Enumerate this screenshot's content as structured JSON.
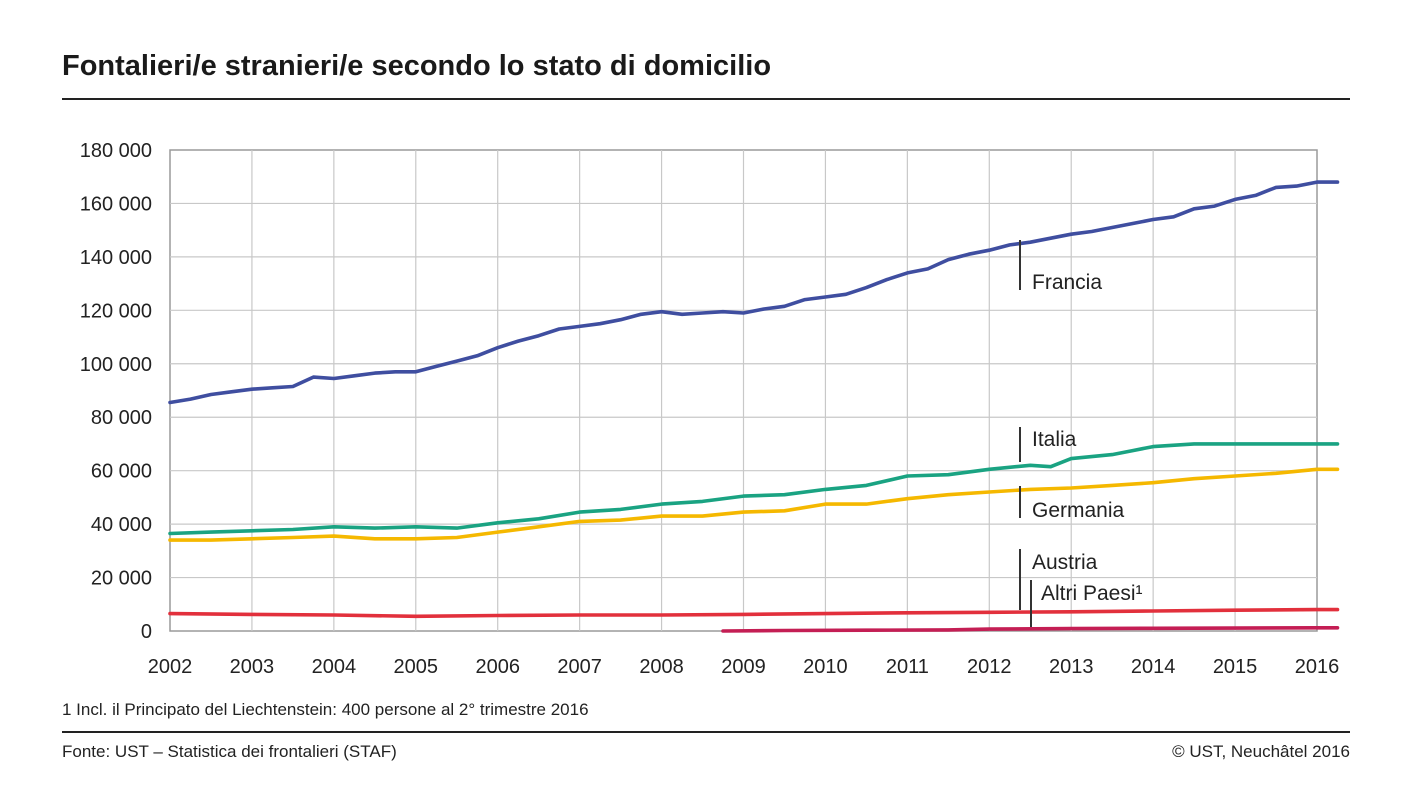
{
  "header": {
    "title": "Fontalieri/e stranieri/e secondo lo stato di domicilio"
  },
  "footer": {
    "footnote": "1   Incl. il Principato del Liechtenstein: 400 persone al 2° trimestre 2016",
    "source": "Fonte: UST – Statistica dei frontalieri (STAF)",
    "copyright": "© UST, Neuchâtel 2016"
  },
  "chart_data": {
    "type": "line",
    "title": "Fontalieri/e stranieri/e secondo lo stato di domicilio",
    "xlabel": "",
    "ylabel": "",
    "xlim": [
      2002,
      2016
    ],
    "ylim": [
      0,
      180000
    ],
    "y_ticks": [
      0,
      20000,
      40000,
      60000,
      80000,
      100000,
      120000,
      140000,
      160000,
      180000
    ],
    "y_tick_labels": [
      "0",
      "20 000",
      "40 000",
      "60 000",
      "80 000",
      "100 000",
      "120 000",
      "140 000",
      "160 000",
      "180 000"
    ],
    "x_tick_labels": [
      "2002",
      "2003",
      "2004",
      "2005",
      "2006",
      "2007",
      "2008",
      "2009",
      "2010",
      "2011",
      "2012",
      "2013",
      "2014",
      "2015",
      "2016"
    ],
    "grid": true,
    "series": [
      {
        "name": "Francia",
        "color": "#3f4ea0",
        "x": [
          2002.0,
          2002.25,
          2002.5,
          2002.75,
          2003.0,
          2003.25,
          2003.5,
          2003.75,
          2004.0,
          2004.25,
          2004.5,
          2004.75,
          2005.0,
          2005.25,
          2005.5,
          2005.75,
          2006.0,
          2006.25,
          2006.5,
          2006.75,
          2007.0,
          2007.25,
          2007.5,
          2007.75,
          2008.0,
          2008.25,
          2008.5,
          2008.75,
          2009.0,
          2009.25,
          2009.5,
          2009.75,
          2010.0,
          2010.25,
          2010.5,
          2010.75,
          2011.0,
          2011.25,
          2011.5,
          2011.75,
          2012.0,
          2012.25,
          2012.5,
          2012.75,
          2013.0,
          2013.25,
          2013.5,
          2013.75,
          2014.0,
          2014.25,
          2014.5,
          2014.75,
          2015.0,
          2015.25,
          2015.5,
          2015.75,
          2016.0,
          2016.25
        ],
        "values": [
          85500,
          86800,
          88500,
          89500,
          90500,
          91000,
          91500,
          95000,
          94500,
          95500,
          96500,
          97000,
          97000,
          99000,
          101000,
          103000,
          106000,
          108500,
          110500,
          113000,
          114000,
          115000,
          116500,
          118500,
          119500,
          118500,
          119000,
          119500,
          119000,
          120500,
          121500,
          124000,
          125000,
          126000,
          128500,
          131500,
          134000,
          135500,
          139000,
          141000,
          142500,
          144500,
          145500,
          147000,
          148500,
          149500,
          151000,
          152500,
          154000,
          155000,
          158000,
          159000,
          161500,
          163000,
          166000,
          166500,
          168000,
          168000
        ]
      },
      {
        "name": "Italia",
        "color": "#1aa382",
        "x": [
          2002.0,
          2002.5,
          2003.0,
          2003.5,
          2004.0,
          2004.5,
          2005.0,
          2005.5,
          2006.0,
          2006.5,
          2007.0,
          2007.5,
          2008.0,
          2008.5,
          2009.0,
          2009.5,
          2010.0,
          2010.5,
          2011.0,
          2011.5,
          2012.0,
          2012.5,
          2012.75,
          2013.0,
          2013.5,
          2013.75,
          2014.0,
          2014.5,
          2015.0,
          2015.5,
          2016.0,
          2016.25
        ],
        "values": [
          36500,
          37000,
          37500,
          38000,
          39000,
          38500,
          39000,
          38500,
          40500,
          42000,
          44500,
          45500,
          47500,
          48500,
          50500,
          51000,
          53000,
          54500,
          58000,
          58500,
          60500,
          62000,
          61500,
          64500,
          66000,
          67500,
          69000,
          70000,
          70000,
          70000,
          70000,
          70000
        ]
      },
      {
        "name": "Germania",
        "color": "#f5b800",
        "x": [
          2002.0,
          2002.5,
          2003.0,
          2003.5,
          2004.0,
          2004.5,
          2005.0,
          2005.5,
          2006.0,
          2006.5,
          2007.0,
          2007.5,
          2008.0,
          2008.5,
          2009.0,
          2009.5,
          2010.0,
          2010.5,
          2011.0,
          2011.5,
          2012.0,
          2012.5,
          2013.0,
          2013.5,
          2014.0,
          2014.5,
          2015.0,
          2015.5,
          2016.0,
          2016.25
        ],
        "values": [
          34000,
          34000,
          34500,
          35000,
          35500,
          34500,
          34500,
          35000,
          37000,
          39000,
          41000,
          41500,
          43000,
          43000,
          44500,
          45000,
          47500,
          47500,
          49500,
          51000,
          52000,
          53000,
          53500,
          54500,
          55500,
          57000,
          58000,
          59000,
          60500,
          60500
        ]
      },
      {
        "name": "Austria",
        "color": "#e2303c",
        "x": [
          2002.0,
          2003.0,
          2004.0,
          2005.0,
          2006.0,
          2007.0,
          2008.0,
          2009.0,
          2010.0,
          2011.0,
          2012.0,
          2013.0,
          2014.0,
          2015.0,
          2016.0,
          2016.25
        ],
        "values": [
          6500,
          6200,
          6000,
          5500,
          5800,
          6000,
          6000,
          6200,
          6500,
          6800,
          7000,
          7200,
          7500,
          7800,
          8000,
          8000
        ]
      },
      {
        "name": "Altri Paesi¹",
        "color": "#c41e54",
        "x": [
          2008.75,
          2009.5,
          2010.5,
          2011.5,
          2012.0,
          2013.0,
          2014.0,
          2015.0,
          2016.0,
          2016.25
        ],
        "values": [
          0,
          200,
          300,
          400,
          700,
          900,
          1000,
          1100,
          1200,
          1200
        ]
      }
    ],
    "annotations": [
      {
        "series": "Francia",
        "text": "Francia"
      },
      {
        "series": "Italia",
        "text": "Italia"
      },
      {
        "series": "Germania",
        "text": "Germania"
      },
      {
        "series": "Austria",
        "text": "Austria"
      },
      {
        "series": "Altri Paesi¹",
        "text": "Altri Paesi¹"
      }
    ]
  }
}
